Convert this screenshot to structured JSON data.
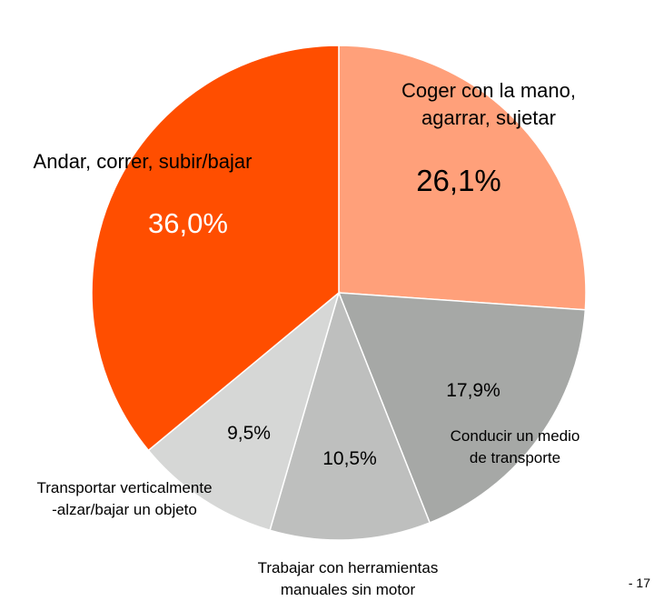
{
  "chart_data": {
    "type": "pie",
    "title": "",
    "start_angle_deg": 0,
    "direction": "clockwise",
    "slices": [
      {
        "label_lines": [
          "Coger con la mano,",
          "agarrar, sujetar"
        ],
        "value": 26.1,
        "value_label": "26,1%",
        "color": "#FFA07A",
        "label_color": "#000000",
        "value_color": "#000000"
      },
      {
        "label_lines": [
          "Conducir un medio",
          "de transporte"
        ],
        "value": 17.9,
        "value_label": "17,9%",
        "color": "#A6A8A6",
        "label_color": "#000000",
        "value_color": "#000000"
      },
      {
        "label_lines": [
          "Trabajar con herramientas",
          "manuales sin motor"
        ],
        "value": 10.5,
        "value_label": "10,5%",
        "color": "#BEBFBE",
        "label_color": "#000000",
        "value_color": "#000000"
      },
      {
        "label_lines": [
          "Transportar verticalmente",
          "-alzar/bajar un objeto"
        ],
        "value": 9.5,
        "value_label": "9,5%",
        "color": "#D6D7D6",
        "label_color": "#000000",
        "value_color": "#000000"
      },
      {
        "label_lines": [
          "Andar, correr, subir/bajar"
        ],
        "value": 36.0,
        "value_label": "36,0%",
        "color": "#FF4E00",
        "label_color": "#000000",
        "value_color": "#FFFFFF"
      }
    ]
  },
  "footer": {
    "page_number": "- 17"
  }
}
